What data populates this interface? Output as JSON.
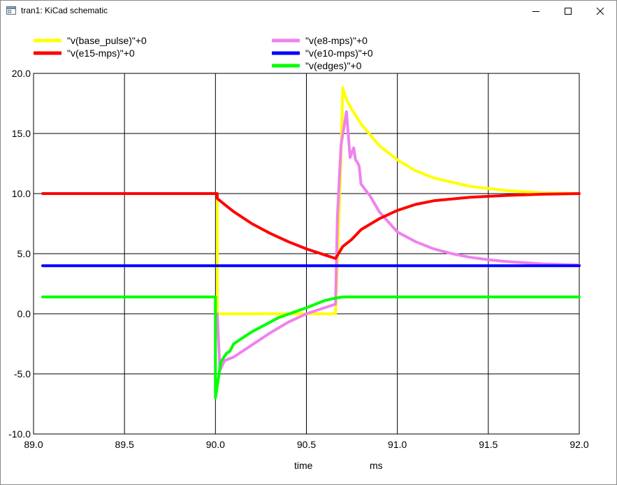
{
  "window": {
    "title": "tran1: KiCad schematic",
    "app_icon": "window-app-icon",
    "controls": {
      "minimize": "minimize-icon",
      "maximize": "maximize-icon",
      "close": "close-icon"
    }
  },
  "chart_data": {
    "type": "line",
    "xlabel": "time",
    "xunit": "ms",
    "ylabel": "",
    "xlim": [
      89.0,
      92.0
    ],
    "ylim": [
      -10.0,
      20.0
    ],
    "grid": true,
    "legend_position": "top",
    "x_ticks": [
      "89.0",
      "89.5",
      "90.0",
      "90.5",
      "91.0",
      "91.5",
      "92.0"
    ],
    "y_ticks": [
      "20.0",
      "15.0",
      "10.0",
      "5.0",
      "0.0",
      "-5.0",
      "-10.0"
    ],
    "series": [
      {
        "name": "\"v(base_pulse)\"+0",
        "color": "#ffff00",
        "x": [
          90.0,
          90.01,
          90.01,
          90.66,
          90.69,
          90.7,
          90.72,
          90.75,
          90.8,
          90.9,
          91.0,
          91.1,
          91.2,
          91.4,
          91.6,
          91.8,
          92.0
        ],
        "y": [
          10.0,
          10.0,
          0.0,
          0.0,
          13.0,
          18.8,
          17.8,
          17.0,
          15.8,
          14.0,
          12.8,
          11.9,
          11.3,
          10.6,
          10.25,
          10.05,
          10.0
        ]
      },
      {
        "name": "\"v(e8-mps)\"+0",
        "color": "#ee82ee",
        "x": [
          90.01,
          90.025,
          90.05,
          90.1,
          90.2,
          90.3,
          90.4,
          90.5,
          90.6,
          90.66,
          90.67,
          90.69,
          90.72,
          90.74,
          90.76,
          90.77,
          90.78,
          90.79,
          90.8,
          90.85,
          90.9,
          91.0,
          91.1,
          91.2,
          91.3,
          91.4,
          91.5,
          91.6,
          91.8,
          92.0
        ],
        "y": [
          0.0,
          -4.7,
          -3.9,
          -3.6,
          -2.6,
          -1.6,
          -0.7,
          0.0,
          0.5,
          0.8,
          8.0,
          14.0,
          16.8,
          13.0,
          13.8,
          12.8,
          12.6,
          12.3,
          10.8,
          9.8,
          8.5,
          6.8,
          6.0,
          5.4,
          5.0,
          4.7,
          4.5,
          4.35,
          4.15,
          4.05
        ]
      },
      {
        "name": "\"v(e15-mps)\"+0",
        "color": "#ff0000",
        "x": [
          89.05,
          90.0,
          90.01,
          90.01,
          90.05,
          90.1,
          90.2,
          90.3,
          90.4,
          90.5,
          90.6,
          90.66,
          90.7,
          90.75,
          90.8,
          90.9,
          91.0,
          91.1,
          91.2,
          91.4,
          91.6,
          91.8,
          92.0
        ],
        "y": [
          10.0,
          10.0,
          10.0,
          9.6,
          9.1,
          8.5,
          7.5,
          6.7,
          6.0,
          5.4,
          4.9,
          4.6,
          5.6,
          6.2,
          7.0,
          7.9,
          8.6,
          9.1,
          9.4,
          9.7,
          9.85,
          9.95,
          10.0
        ]
      },
      {
        "name": "\"v(e10-mps)\"+0",
        "color": "#0000ff",
        "x": [
          89.05,
          92.0
        ],
        "y": [
          4.0,
          4.0
        ]
      },
      {
        "name": "\"v(edges)\"+0",
        "color": "#00ff00",
        "x": [
          89.05,
          90.0,
          90.0,
          90.01,
          90.03,
          90.06,
          90.08,
          90.1,
          90.2,
          90.35,
          90.5,
          90.6,
          90.66,
          90.7,
          90.8,
          91.0,
          92.0
        ],
        "y": [
          1.4,
          1.4,
          -7.0,
          -6.0,
          -4.0,
          -3.3,
          -3.1,
          -2.5,
          -1.5,
          -0.3,
          0.5,
          1.1,
          1.3,
          1.4,
          1.4,
          1.4,
          1.4
        ]
      }
    ]
  }
}
